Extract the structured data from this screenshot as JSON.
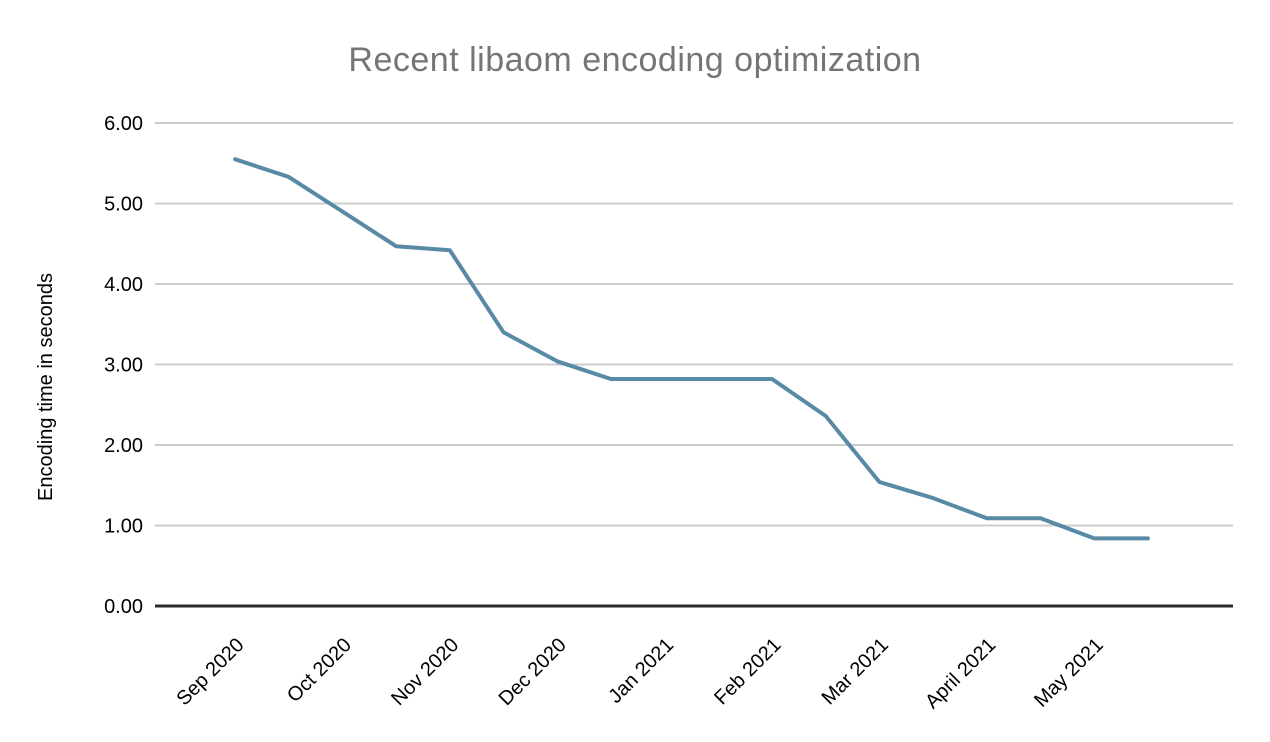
{
  "chart_data": {
    "type": "line",
    "title": "Recent libaom encoding optimization",
    "xlabel": "",
    "ylabel": "Encoding time in seconds",
    "ylim": [
      0,
      6
    ],
    "y_step": 1,
    "y_tick_labels": [
      "6.00",
      "5.00",
      "4.00",
      "3.00",
      "2.00",
      "1.00",
      "0.00"
    ],
    "x_tick_labels": [
      "Sep 2020",
      "Oct 2020",
      "Nov 2020",
      "Dec 2020",
      "Jan 2021",
      "Feb 2021",
      "Mar 2021",
      "April 2021",
      "May 2021"
    ],
    "points_per_x_label": 2,
    "series": [
      {
        "name": "Encoding time in seconds",
        "values": [
          5.55,
          5.33,
          4.9,
          4.47,
          4.42,
          3.4,
          3.04,
          2.82,
          2.82,
          2.82,
          2.82,
          2.36,
          1.54,
          1.34,
          1.09,
          1.09,
          0.84,
          0.84
        ]
      }
    ],
    "legend": "none",
    "grid": "horizontal",
    "colors": {
      "line": "#588aa6",
      "title": "#757575",
      "axis_text": "#000000",
      "gridline": "#cccccc",
      "axis_line": "#2b2b2b",
      "background": "#ffffff"
    }
  }
}
